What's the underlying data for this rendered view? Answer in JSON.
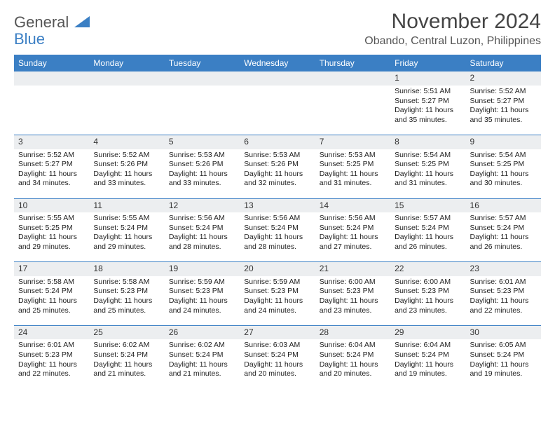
{
  "logo": {
    "line1": "General",
    "line2": "Blue"
  },
  "title": "November 2024",
  "location": "Obando, Central Luzon, Philippines",
  "colors": {
    "header_bg": "#3b7fc4",
    "header_text": "#ffffff",
    "daynum_bg": "#eceef0",
    "border": "#3b7fc4",
    "text": "#222222",
    "title_text": "#444444",
    "subtitle_text": "#555555"
  },
  "day_headers": [
    "Sunday",
    "Monday",
    "Tuesday",
    "Wednesday",
    "Thursday",
    "Friday",
    "Saturday"
  ],
  "weeks": [
    [
      null,
      null,
      null,
      null,
      null,
      {
        "n": "1",
        "sr": "5:51 AM",
        "ss": "5:27 PM",
        "dl": "11 hours and 35 minutes."
      },
      {
        "n": "2",
        "sr": "5:52 AM",
        "ss": "5:27 PM",
        "dl": "11 hours and 35 minutes."
      }
    ],
    [
      {
        "n": "3",
        "sr": "5:52 AM",
        "ss": "5:27 PM",
        "dl": "11 hours and 34 minutes."
      },
      {
        "n": "4",
        "sr": "5:52 AM",
        "ss": "5:26 PM",
        "dl": "11 hours and 33 minutes."
      },
      {
        "n": "5",
        "sr": "5:53 AM",
        "ss": "5:26 PM",
        "dl": "11 hours and 33 minutes."
      },
      {
        "n": "6",
        "sr": "5:53 AM",
        "ss": "5:26 PM",
        "dl": "11 hours and 32 minutes."
      },
      {
        "n": "7",
        "sr": "5:53 AM",
        "ss": "5:25 PM",
        "dl": "11 hours and 31 minutes."
      },
      {
        "n": "8",
        "sr": "5:54 AM",
        "ss": "5:25 PM",
        "dl": "11 hours and 31 minutes."
      },
      {
        "n": "9",
        "sr": "5:54 AM",
        "ss": "5:25 PM",
        "dl": "11 hours and 30 minutes."
      }
    ],
    [
      {
        "n": "10",
        "sr": "5:55 AM",
        "ss": "5:25 PM",
        "dl": "11 hours and 29 minutes."
      },
      {
        "n": "11",
        "sr": "5:55 AM",
        "ss": "5:24 PM",
        "dl": "11 hours and 29 minutes."
      },
      {
        "n": "12",
        "sr": "5:56 AM",
        "ss": "5:24 PM",
        "dl": "11 hours and 28 minutes."
      },
      {
        "n": "13",
        "sr": "5:56 AM",
        "ss": "5:24 PM",
        "dl": "11 hours and 28 minutes."
      },
      {
        "n": "14",
        "sr": "5:56 AM",
        "ss": "5:24 PM",
        "dl": "11 hours and 27 minutes."
      },
      {
        "n": "15",
        "sr": "5:57 AM",
        "ss": "5:24 PM",
        "dl": "11 hours and 26 minutes."
      },
      {
        "n": "16",
        "sr": "5:57 AM",
        "ss": "5:24 PM",
        "dl": "11 hours and 26 minutes."
      }
    ],
    [
      {
        "n": "17",
        "sr": "5:58 AM",
        "ss": "5:24 PM",
        "dl": "11 hours and 25 minutes."
      },
      {
        "n": "18",
        "sr": "5:58 AM",
        "ss": "5:23 PM",
        "dl": "11 hours and 25 minutes."
      },
      {
        "n": "19",
        "sr": "5:59 AM",
        "ss": "5:23 PM",
        "dl": "11 hours and 24 minutes."
      },
      {
        "n": "20",
        "sr": "5:59 AM",
        "ss": "5:23 PM",
        "dl": "11 hours and 24 minutes."
      },
      {
        "n": "21",
        "sr": "6:00 AM",
        "ss": "5:23 PM",
        "dl": "11 hours and 23 minutes."
      },
      {
        "n": "22",
        "sr": "6:00 AM",
        "ss": "5:23 PM",
        "dl": "11 hours and 23 minutes."
      },
      {
        "n": "23",
        "sr": "6:01 AM",
        "ss": "5:23 PM",
        "dl": "11 hours and 22 minutes."
      }
    ],
    [
      {
        "n": "24",
        "sr": "6:01 AM",
        "ss": "5:23 PM",
        "dl": "11 hours and 22 minutes."
      },
      {
        "n": "25",
        "sr": "6:02 AM",
        "ss": "5:24 PM",
        "dl": "11 hours and 21 minutes."
      },
      {
        "n": "26",
        "sr": "6:02 AM",
        "ss": "5:24 PM",
        "dl": "11 hours and 21 minutes."
      },
      {
        "n": "27",
        "sr": "6:03 AM",
        "ss": "5:24 PM",
        "dl": "11 hours and 20 minutes."
      },
      {
        "n": "28",
        "sr": "6:04 AM",
        "ss": "5:24 PM",
        "dl": "11 hours and 20 minutes."
      },
      {
        "n": "29",
        "sr": "6:04 AM",
        "ss": "5:24 PM",
        "dl": "11 hours and 19 minutes."
      },
      {
        "n": "30",
        "sr": "6:05 AM",
        "ss": "5:24 PM",
        "dl": "11 hours and 19 minutes."
      }
    ]
  ],
  "labels": {
    "sunrise": "Sunrise:",
    "sunset": "Sunset:",
    "daylight": "Daylight:"
  }
}
